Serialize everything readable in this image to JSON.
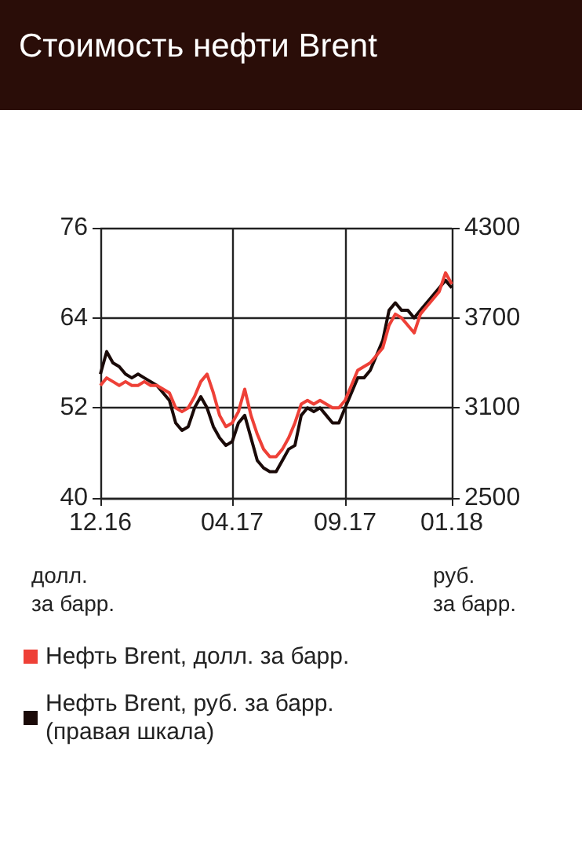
{
  "chart_data": {
    "type": "line",
    "title": "Стоимость нефти Brent",
    "xlabel": null,
    "ylabel": "долл.\nза барр.",
    "y2label": "руб.\nза барр.",
    "categories": [
      "12.16",
      null,
      null,
      null,
      null,
      null,
      null,
      null,
      null,
      null,
      null,
      null,
      null,
      null,
      null,
      null,
      null,
      null,
      null,
      null,
      null,
      "04.17",
      null,
      null,
      null,
      null,
      null,
      null,
      null,
      null,
      null,
      null,
      null,
      null,
      null,
      null,
      null,
      null,
      null,
      "09.17",
      null,
      null,
      null,
      null,
      null,
      null,
      null,
      null,
      null,
      null,
      null,
      null,
      null,
      null,
      null,
      null,
      "01.18"
    ],
    "series": [
      {
        "name": "Нефть Brent, долл. за барр.",
        "color": "#ee4037",
        "values": [
          55,
          56,
          55.5,
          55,
          55.5,
          55,
          55,
          55.5,
          55,
          55,
          54.5,
          54,
          52,
          51.5,
          52,
          53.5,
          55.5,
          56.5,
          54,
          51,
          49.5,
          50,
          51.5,
          54.5,
          51,
          48.5,
          46.5,
          45.5,
          45.5,
          46.5,
          48,
          50,
          52.5,
          53,
          52.5,
          53,
          52.5,
          52,
          52,
          53,
          55,
          57,
          57.5,
          58,
          59,
          60,
          63,
          64.5,
          64,
          63,
          62,
          64.5,
          65.5,
          66.5,
          67.5,
          70,
          68.5
        ]
      },
      {
        "name": "Нефть Brent, руб. за барр.\n(правая шкала)",
        "color": "#1a0a08",
        "axis": "y2",
        "values": [
          3325,
          3475,
          3400,
          3375,
          3325,
          3300,
          3325,
          3300,
          3275,
          3250,
          3200,
          3150,
          3000,
          2950,
          2975,
          3100,
          3175,
          3100,
          2975,
          2900,
          2850,
          2875,
          3000,
          3050,
          2900,
          2750,
          2700,
          2675,
          2675,
          2750,
          2825,
          2850,
          3050,
          3100,
          3075,
          3100,
          3050,
          3000,
          3000,
          3100,
          3200,
          3300,
          3300,
          3350,
          3450,
          3550,
          3750,
          3800,
          3750,
          3750,
          3700,
          3750,
          3800,
          3850,
          3900,
          3950,
          3900
        ]
      }
    ],
    "ylim": [
      40,
      76
    ],
    "yticks": [
      40,
      52,
      64,
      76
    ],
    "y2lim": [
      2500,
      4300
    ],
    "y2ticks": [
      2500,
      3100,
      3700,
      4300
    ],
    "grid": true,
    "legend": "bottom",
    "marker": "none",
    "line_style": "solid"
  }
}
